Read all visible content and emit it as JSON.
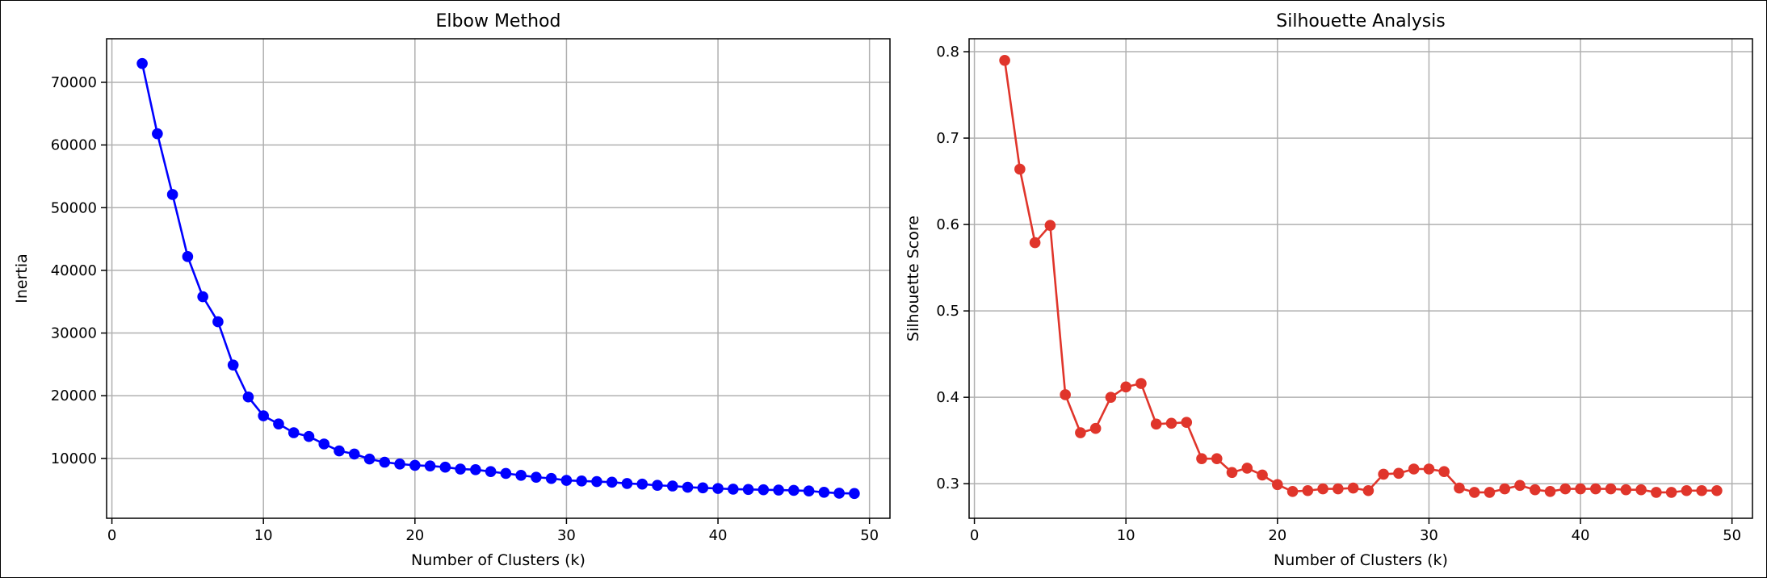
{
  "chart_data": [
    {
      "type": "line",
      "title": "Elbow Method",
      "xlabel": "Number of Clusters (k)",
      "ylabel": "Inertia",
      "xlim": [
        -0.35,
        51.35
      ],
      "ylim": [
        450,
        76950
      ],
      "xticks": [
        0,
        10,
        20,
        30,
        40,
        50
      ],
      "xtick_labels": [
        "0",
        "10",
        "20",
        "30",
        "40",
        "50"
      ],
      "yticks": [
        10000,
        20000,
        30000,
        40000,
        50000,
        60000,
        70000
      ],
      "ytick_labels": [
        "10000",
        "20000",
        "30000",
        "40000",
        "50000",
        "60000",
        "70000"
      ],
      "grid": true,
      "color": "#0000ff",
      "series": [
        {
          "x": [
            2,
            3,
            4,
            5,
            6,
            7,
            8,
            9,
            10,
            11,
            12,
            13,
            14,
            15,
            16,
            17,
            18,
            19,
            20,
            21,
            22,
            23,
            24,
            25,
            26,
            27,
            28,
            29,
            30,
            31,
            32,
            33,
            34,
            35,
            36,
            37,
            38,
            39,
            40,
            41,
            42,
            43,
            44,
            45,
            46,
            47,
            48,
            49
          ],
          "values": [
            73000,
            61800,
            52100,
            42200,
            35800,
            31800,
            24900,
            19800,
            16800,
            15500,
            14100,
            13500,
            12300,
            11200,
            10700,
            9900,
            9400,
            9100,
            8900,
            8800,
            8600,
            8300,
            8200,
            7900,
            7600,
            7300,
            7000,
            6800,
            6500,
            6400,
            6300,
            6200,
            6000,
            5900,
            5700,
            5600,
            5400,
            5300,
            5200,
            5100,
            5050,
            5000,
            4950,
            4900,
            4800,
            4600,
            4450,
            4400
          ]
        }
      ]
    },
    {
      "type": "line",
      "title": "Silhouette Analysis",
      "xlabel": "Number of Clusters (k)",
      "ylabel": "Silhouette Score",
      "xlim": [
        -0.35,
        51.35
      ],
      "ylim": [
        0.26,
        0.815
      ],
      "xticks": [
        0,
        10,
        20,
        30,
        40,
        50
      ],
      "xtick_labels": [
        "0",
        "10",
        "20",
        "30",
        "40",
        "50"
      ],
      "yticks": [
        0.3,
        0.4,
        0.5,
        0.6,
        0.7,
        0.8
      ],
      "ytick_labels": [
        "0.3",
        "0.4",
        "0.5",
        "0.6",
        "0.7",
        "0.8"
      ],
      "grid": true,
      "color": "#e0352b",
      "series": [
        {
          "x": [
            2,
            3,
            4,
            5,
            6,
            7,
            8,
            9,
            10,
            11,
            12,
            13,
            14,
            15,
            16,
            17,
            18,
            19,
            20,
            21,
            22,
            23,
            24,
            25,
            26,
            27,
            28,
            29,
            30,
            31,
            32,
            33,
            34,
            35,
            36,
            37,
            38,
            39,
            40,
            41,
            42,
            43,
            44,
            45,
            46,
            47,
            48,
            49
          ],
          "values": [
            0.79,
            0.664,
            0.579,
            0.599,
            0.403,
            0.359,
            0.364,
            0.4,
            0.412,
            0.416,
            0.369,
            0.37,
            0.371,
            0.329,
            0.329,
            0.313,
            0.318,
            0.31,
            0.299,
            0.291,
            0.292,
            0.294,
            0.294,
            0.295,
            0.292,
            0.311,
            0.312,
            0.317,
            0.317,
            0.314,
            0.295,
            0.29,
            0.29,
            0.294,
            0.298,
            0.293,
            0.291,
            0.294,
            0.294,
            0.294,
            0.294,
            0.293,
            0.293,
            0.29,
            0.29,
            0.292,
            0.292,
            0.292
          ]
        }
      ]
    }
  ]
}
